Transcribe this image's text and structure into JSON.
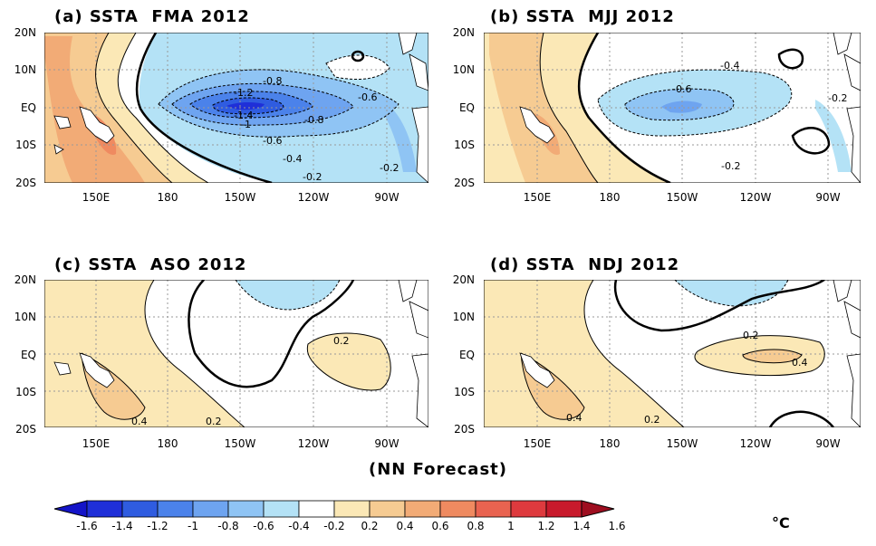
{
  "panels": [
    {
      "title": "(a) SSTA  FMA 2012",
      "contour_labels": [
        "-0.8",
        "-1.2",
        "-1.4",
        "-1",
        "-0.6",
        "-0.8",
        "-0.6",
        "-0.4",
        "-0.2",
        "-0.2"
      ]
    },
    {
      "title": "(b) SSTA  MJJ 2012",
      "contour_labels": [
        "-0.4",
        "-0.6",
        "-0.2",
        "-0.2"
      ]
    },
    {
      "title": "(c) SSTA  ASO 2012",
      "contour_labels": [
        "0.2",
        "0.4",
        "0.2"
      ]
    },
    {
      "title": "(d) SSTA  NDJ 2012",
      "contour_labels": [
        "0.2",
        "0.4",
        "0.4",
        "0.2"
      ]
    }
  ],
  "lat_labels": [
    "20N",
    "10N",
    "EQ",
    "10S",
    "20S"
  ],
  "lon_labels": [
    "150E",
    "180",
    "150W",
    "120W",
    "90W"
  ],
  "caption": "(NN Forecast)",
  "colorbar": {
    "labels": [
      "-1.6",
      "-1.4",
      "-1.2",
      "-1",
      "-0.8",
      "-0.6",
      "-0.4",
      "-0.2",
      "0.2",
      "0.4",
      "0.6",
      "0.8",
      "1",
      "1.2",
      "1.4",
      "1.6"
    ],
    "unit": "°C",
    "colors": [
      "#1f2fd8",
      "#2f5ce0",
      "#4b82ea",
      "#6ea4f0",
      "#8fc4f4",
      "#b4e2f6",
      "#ffffff",
      "#fbe8b6",
      "#f6cb92",
      "#f2ab76",
      "#ef8a60",
      "#e96350",
      "#de3a3e",
      "#c81a2c"
    ],
    "end_left": "#1414c8",
    "end_right": "#9e0e20"
  }
}
